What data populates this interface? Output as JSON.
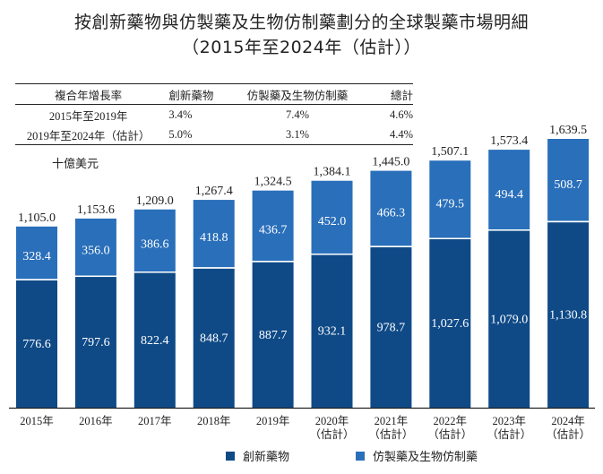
{
  "title_line1": "按創新藥物與仿製藥及生物仿制藥劃分的全球製藥市場明細",
  "title_line2": "（2015年至2024年（估計））",
  "cagr_table": {
    "headers": [
      "複合年增長率",
      "創新藥物",
      "仿製藥及生物仿制藥",
      "總計"
    ],
    "rows": [
      [
        "2015年至2019年",
        "3.4%",
        "7.4%",
        "4.6%"
      ],
      [
        "2019年至2024年（估計）",
        "5.0%",
        "3.1%",
        "4.4%"
      ]
    ]
  },
  "unit_label": "十億美元",
  "colors": {
    "innovative": "#0f4a87",
    "generic": "#2a6fba",
    "axis": "#222222"
  },
  "chart_data": {
    "type": "bar",
    "stacked": true,
    "title": "按創新藥物與仿製藥及生物仿制藥劃分的全球製藥市場明細（2015年至2024年（估計））",
    "ylabel": "十億美元",
    "xlabel": "",
    "categories": [
      "2015年",
      "2016年",
      "2017年",
      "2018年",
      "2019年",
      "2020年",
      "2021年",
      "2022年",
      "2023年",
      "2024年"
    ],
    "category_sublabels": [
      "",
      "",
      "",
      "",
      "",
      "（估計）",
      "（估計）",
      "（估計）",
      "（估計）",
      "（估計）"
    ],
    "series": [
      {
        "name": "創新藥物",
        "values": [
          776.6,
          797.6,
          822.4,
          848.7,
          887.7,
          932.1,
          978.7,
          1027.6,
          1079.0,
          1130.8
        ],
        "labels": [
          "776.6",
          "797.6",
          "822.4",
          "848.7",
          "887.7",
          "932.1",
          "978.7",
          "1,027.6",
          "1,079.0",
          "1,130.8"
        ]
      },
      {
        "name": "仿製藥及生物仿制藥",
        "values": [
          328.4,
          356.0,
          386.6,
          418.8,
          436.7,
          452.0,
          466.3,
          479.5,
          494.4,
          508.7
        ],
        "labels": [
          "328.4",
          "356.0",
          "386.6",
          "418.8",
          "436.7",
          "452.0",
          "466.3",
          "479.5",
          "494.4",
          "508.7"
        ]
      }
    ],
    "totals": [
      1105.0,
      1153.6,
      1209.0,
      1267.4,
      1324.5,
      1384.1,
      1445.0,
      1507.1,
      1573.4,
      1639.5
    ],
    "total_labels": [
      "1,105.0",
      "1,153.6",
      "1,209.0",
      "1,267.4",
      "1,324.5",
      "1,384.1",
      "1,445.0",
      "1,507.1",
      "1,573.4",
      "1,639.5"
    ],
    "ylim": [
      0,
      1700
    ],
    "grid": false,
    "legend": "bottom-center"
  },
  "legend": [
    {
      "label": "創新藥物"
    },
    {
      "label": "仿製藥及生物仿制藥"
    }
  ]
}
